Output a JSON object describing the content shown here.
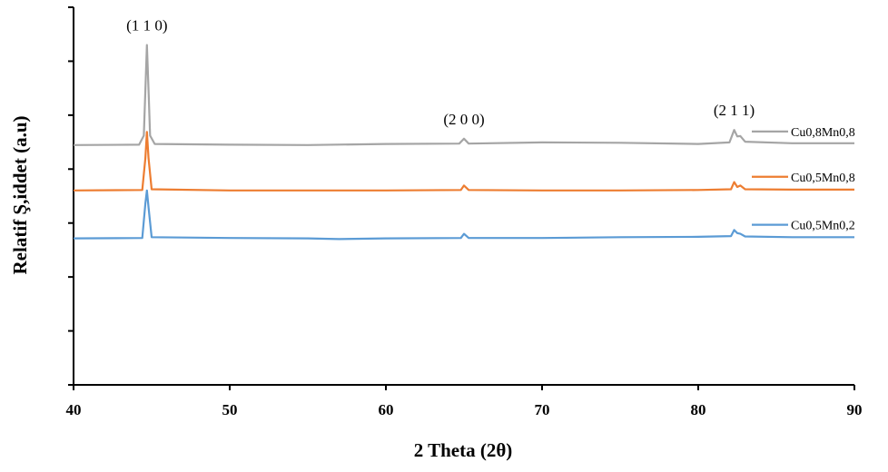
{
  "chart_data": {
    "type": "line",
    "title": "",
    "xlabel": "2 Theta (2θ)",
    "ylabel": "Relatif Ş,iddet (a.u)",
    "xlim": [
      40,
      90
    ],
    "x_ticks": [
      "40",
      "50",
      "60",
      "70",
      "80",
      "90"
    ],
    "y_ticks_labeled": false,
    "grid": false,
    "legend_position": "right, beside each trace",
    "peak_labels": [
      {
        "text": "(1 1 0)",
        "x": 44.7
      },
      {
        "text": "(2 0 0)",
        "x": 65.0
      },
      {
        "text": "(2 1 1)",
        "x": 82.3
      }
    ],
    "series": [
      {
        "name": "Cu0,8Mn0,8",
        "color": "#a5a5a5",
        "baseline": 63.5,
        "points": [
          [
            40,
            63.5
          ],
          [
            44.2,
            63.6
          ],
          [
            44.5,
            66
          ],
          [
            44.6,
            78
          ],
          [
            44.7,
            90
          ],
          [
            44.8,
            78
          ],
          [
            44.9,
            66
          ],
          [
            45.2,
            63.8
          ],
          [
            50,
            63.6
          ],
          [
            55,
            63.5
          ],
          [
            60,
            63.8
          ],
          [
            64.7,
            63.9
          ],
          [
            65.0,
            65.2
          ],
          [
            65.3,
            63.9
          ],
          [
            70,
            64.2
          ],
          [
            75,
            64.1
          ],
          [
            80,
            63.8
          ],
          [
            82.0,
            64.2
          ],
          [
            82.3,
            67.5
          ],
          [
            82.5,
            65.8
          ],
          [
            82.7,
            65.9
          ],
          [
            83.0,
            64.4
          ],
          [
            86,
            64.0
          ],
          [
            90,
            64.0
          ]
        ]
      },
      {
        "name": "Cu0,5Mn0,8",
        "color": "#ed7d31",
        "baseline": 51.5,
        "points": [
          [
            40,
            51.5
          ],
          [
            44.4,
            51.6
          ],
          [
            44.6,
            60
          ],
          [
            44.7,
            67
          ],
          [
            44.8,
            60
          ],
          [
            45.0,
            51.8
          ],
          [
            50,
            51.5
          ],
          [
            55,
            51.5
          ],
          [
            60,
            51.5
          ],
          [
            64.8,
            51.6
          ],
          [
            65.0,
            52.8
          ],
          [
            65.3,
            51.6
          ],
          [
            70,
            51.5
          ],
          [
            75,
            51.5
          ],
          [
            80,
            51.6
          ],
          [
            82.1,
            51.8
          ],
          [
            82.3,
            53.7
          ],
          [
            82.5,
            52.4
          ],
          [
            82.7,
            52.8
          ],
          [
            83.0,
            51.8
          ],
          [
            86,
            51.7
          ],
          [
            90,
            51.7
          ]
        ]
      },
      {
        "name": "Cu0,5Mn0,2",
        "color": "#5b9bd5",
        "baseline": 38.8,
        "points": [
          [
            40,
            38.8
          ],
          [
            44.4,
            38.9
          ],
          [
            44.6,
            48
          ],
          [
            44.7,
            51.5
          ],
          [
            44.8,
            47
          ],
          [
            45.0,
            39.1
          ],
          [
            50,
            38.9
          ],
          [
            55,
            38.8
          ],
          [
            57,
            38.6
          ],
          [
            60,
            38.8
          ],
          [
            64.8,
            38.9
          ],
          [
            65.0,
            40.0
          ],
          [
            65.3,
            38.9
          ],
          [
            70,
            38.9
          ],
          [
            75,
            39.1
          ],
          [
            80,
            39.2
          ],
          [
            82.1,
            39.4
          ],
          [
            82.3,
            41.0
          ],
          [
            82.5,
            40.2
          ],
          [
            82.7,
            40.0
          ],
          [
            83.0,
            39.3
          ],
          [
            86,
            39.1
          ],
          [
            90,
            39.1
          ]
        ]
      }
    ]
  }
}
